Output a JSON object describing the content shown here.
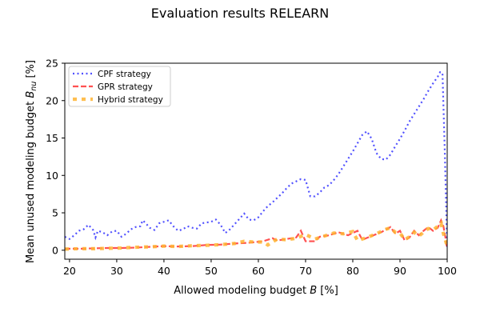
{
  "chart_data": {
    "type": "line",
    "title": "Evaluation results RELEARN",
    "xlabel_prefix": "Allowed modeling budget ",
    "xlabel_var": "B",
    "xlabel_suffix": " [%]",
    "ylabel_prefix": "Mean unused modeling budget ",
    "ylabel_var": "B",
    "ylabel_sub": "nu",
    "ylabel_suffix": " [%]",
    "xlim": [
      19,
      100
    ],
    "ylim": [
      -1.2,
      25
    ],
    "xticks": [
      "20",
      "30",
      "40",
      "50",
      "60",
      "70",
      "80",
      "90",
      "100"
    ],
    "yticks": [
      "0",
      "5",
      "10",
      "15",
      "20",
      "25"
    ],
    "grid": false,
    "legend_position": "top-left",
    "series": [
      {
        "name": "CPF strategy",
        "color": "#3333ff",
        "style": "dotted",
        "points": [
          [
            19,
            1.8
          ],
          [
            20,
            1.5
          ],
          [
            21,
            2.0
          ],
          [
            22,
            2.6
          ],
          [
            23,
            2.8
          ],
          [
            24,
            3.4
          ],
          [
            25,
            2.7
          ],
          [
            25.5,
            1.7
          ],
          [
            26,
            2.6
          ],
          [
            27,
            2.4
          ],
          [
            28,
            2.0
          ],
          [
            29,
            2.5
          ],
          [
            30,
            2.6
          ],
          [
            31,
            1.8
          ],
          [
            32,
            2.2
          ],
          [
            33,
            2.8
          ],
          [
            34,
            3.1
          ],
          [
            35,
            3.2
          ],
          [
            35.5,
            4.0
          ],
          [
            36,
            3.7
          ],
          [
            37,
            3.0
          ],
          [
            38,
            2.7
          ],
          [
            39,
            3.6
          ],
          [
            40,
            3.8
          ],
          [
            41,
            4.0
          ],
          [
            42,
            3.2
          ],
          [
            43,
            2.6
          ],
          [
            44,
            2.8
          ],
          [
            45,
            3.2
          ],
          [
            46,
            3.0
          ],
          [
            47,
            2.9
          ],
          [
            48,
            3.6
          ],
          [
            49,
            3.7
          ],
          [
            50,
            3.8
          ],
          [
            51,
            4.1
          ],
          [
            52,
            3.4
          ],
          [
            53,
            2.3
          ],
          [
            54,
            2.8
          ],
          [
            55,
            3.5
          ],
          [
            56,
            4.2
          ],
          [
            57,
            4.9
          ],
          [
            58,
            4.1
          ],
          [
            59,
            4.0
          ],
          [
            60,
            4.4
          ],
          [
            61,
            5.2
          ],
          [
            62,
            5.9
          ],
          [
            63,
            6.4
          ],
          [
            64,
            7.0
          ],
          [
            65,
            7.6
          ],
          [
            66,
            8.3
          ],
          [
            67,
            8.9
          ],
          [
            68,
            9.2
          ],
          [
            69,
            9.5
          ],
          [
            70,
            9.4
          ],
          [
            71,
            7.2
          ],
          [
            72,
            7.2
          ],
          [
            73,
            7.7
          ],
          [
            74,
            8.4
          ],
          [
            75,
            8.7
          ],
          [
            76,
            9.4
          ],
          [
            77,
            10.2
          ],
          [
            78,
            11.2
          ],
          [
            79,
            12.2
          ],
          [
            80,
            13.2
          ],
          [
            81,
            14.3
          ],
          [
            82,
            15.4
          ],
          [
            83,
            15.9
          ],
          [
            84,
            14.9
          ],
          [
            85,
            13.0
          ],
          [
            86,
            12.2
          ],
          [
            87,
            12.1
          ],
          [
            88,
            12.8
          ],
          [
            89,
            13.9
          ],
          [
            90,
            14.9
          ],
          [
            91,
            16.0
          ],
          [
            92,
            17.2
          ],
          [
            93,
            18.2
          ],
          [
            94,
            19.2
          ],
          [
            95,
            20.2
          ],
          [
            96,
            21.3
          ],
          [
            97,
            22.3
          ],
          [
            98,
            23.2
          ],
          [
            98.5,
            23.8
          ],
          [
            99,
            23.7
          ],
          [
            99.5,
            13.0
          ],
          [
            100,
            0.3
          ]
        ]
      },
      {
        "name": "GPR strategy",
        "color": "#ff3333",
        "style": "dashed",
        "points": [
          [
            19,
            0.2
          ],
          [
            22,
            0.2
          ],
          [
            25,
            0.25
          ],
          [
            28,
            0.3
          ],
          [
            31,
            0.3
          ],
          [
            34,
            0.35
          ],
          [
            37,
            0.45
          ],
          [
            40,
            0.55
          ],
          [
            43,
            0.5
          ],
          [
            46,
            0.55
          ],
          [
            49,
            0.7
          ],
          [
            52,
            0.75
          ],
          [
            55,
            0.9
          ],
          [
            58,
            1.0
          ],
          [
            61,
            1.2
          ],
          [
            63,
            1.6
          ],
          [
            64,
            1.3
          ],
          [
            66,
            1.5
          ],
          [
            68,
            1.7
          ],
          [
            69,
            2.6
          ],
          [
            70,
            1.2
          ],
          [
            72,
            1.2
          ],
          [
            73,
            1.8
          ],
          [
            75,
            2.0
          ],
          [
            77,
            2.4
          ],
          [
            79,
            2.0
          ],
          [
            81,
            2.6
          ],
          [
            82,
            1.4
          ],
          [
            84,
            1.9
          ],
          [
            86,
            2.4
          ],
          [
            88,
            3.1
          ],
          [
            89,
            2.2
          ],
          [
            90,
            2.6
          ],
          [
            91,
            1.3
          ],
          [
            92,
            1.7
          ],
          [
            93,
            2.6
          ],
          [
            94,
            2.0
          ],
          [
            95,
            2.6
          ],
          [
            96,
            3.1
          ],
          [
            97,
            2.6
          ],
          [
            98,
            3.0
          ],
          [
            98.7,
            4.0
          ],
          [
            99.2,
            3.2
          ],
          [
            99.6,
            1.8
          ],
          [
            100,
            0.2
          ]
        ]
      },
      {
        "name": "Hybrid strategy",
        "color": "#ffb433",
        "style": "dashed-thick",
        "points": [
          [
            19,
            0.15
          ],
          [
            22,
            0.2
          ],
          [
            25,
            0.2
          ],
          [
            28,
            0.25
          ],
          [
            31,
            0.3
          ],
          [
            34,
            0.4
          ],
          [
            37,
            0.45
          ],
          [
            40,
            0.55
          ],
          [
            43,
            0.5
          ],
          [
            46,
            0.6
          ],
          [
            49,
            0.65
          ],
          [
            52,
            0.75
          ],
          [
            55,
            0.9
          ],
          [
            57,
            1.2
          ],
          [
            59,
            1.1
          ],
          [
            61,
            1.1
          ],
          [
            62,
            0.7
          ],
          [
            64,
            1.5
          ],
          [
            66,
            1.4
          ],
          [
            68,
            1.6
          ],
          [
            70,
            2.1
          ],
          [
            72,
            1.5
          ],
          [
            74,
            1.9
          ],
          [
            76,
            2.3
          ],
          [
            78,
            2.2
          ],
          [
            80,
            2.5
          ],
          [
            81,
            1.3
          ],
          [
            83,
            1.7
          ],
          [
            85,
            2.2
          ],
          [
            87,
            2.8
          ],
          [
            88,
            3.0
          ],
          [
            89,
            2.4
          ],
          [
            90,
            2.3
          ],
          [
            91,
            1.4
          ],
          [
            92,
            1.8
          ],
          [
            93,
            2.4
          ],
          [
            94,
            1.9
          ],
          [
            95,
            2.4
          ],
          [
            96,
            2.9
          ],
          [
            97,
            2.7
          ],
          [
            98,
            3.2
          ],
          [
            98.7,
            3.6
          ],
          [
            99.2,
            2.2
          ],
          [
            99.6,
            1.4
          ],
          [
            100,
            0.5
          ]
        ]
      }
    ]
  }
}
